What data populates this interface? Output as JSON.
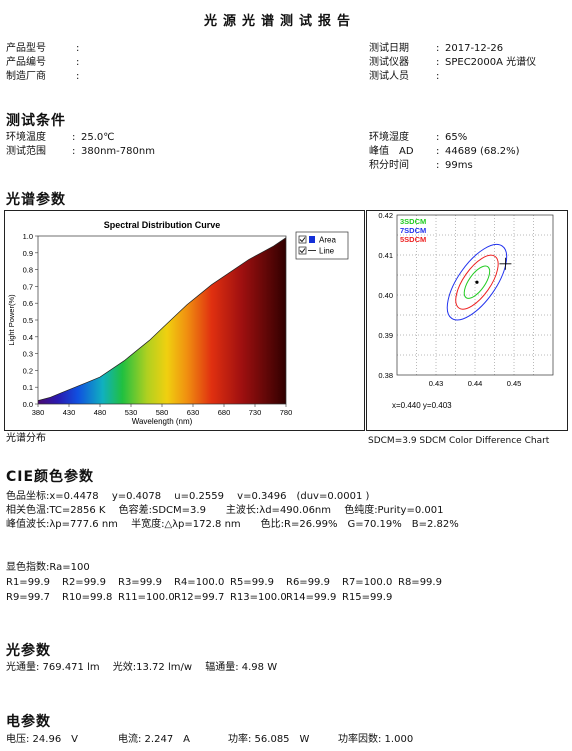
{
  "report": {
    "title": "光源光谱测试报告"
  },
  "info": {
    "left": [
      {
        "label": "产品型号",
        "value": ""
      },
      {
        "label": "产品编号",
        "value": ""
      },
      {
        "label": "制造厂商",
        "value": ""
      }
    ],
    "right": [
      {
        "label": "测试日期",
        "value": "2017-12-26"
      },
      {
        "label": "测试仪器",
        "value": "SPEC2000A 光谱仪"
      },
      {
        "label": "测试人员",
        "value": ""
      }
    ]
  },
  "conditions": {
    "heading": "测试条件",
    "left": [
      {
        "label": "环境温度",
        "value": "25.0℃"
      },
      {
        "label": "测试范围",
        "value": "380nm-780nm"
      }
    ],
    "right": [
      {
        "label": "环境湿度",
        "value": "65%"
      },
      {
        "label": "峰值　AD",
        "value": "44689 (68.2%)"
      },
      {
        "label": "积分时间",
        "value": "99ms"
      }
    ]
  },
  "spectrum": {
    "heading": "光谱参数",
    "caption_left": "光谱分布",
    "caption_right": "SDCM=3.9  SDCM Color Difference Chart",
    "legend": [
      {
        "label": "Area",
        "checked": true,
        "color": "#1430d8"
      },
      {
        "label": "Line",
        "checked": true,
        "color": "#333333"
      }
    ]
  },
  "chart_data": [
    {
      "type": "area",
      "title": "Spectral Distribution Curve",
      "xlabel": "Wavelength  (nm)",
      "ylabel": "Light Power(%)",
      "xlim": [
        380,
        780
      ],
      "ylim": [
        0,
        1.0
      ],
      "x_ticks": [
        "380",
        "430",
        "480",
        "530",
        "580",
        "630",
        "680",
        "730",
        "780"
      ],
      "y_ticks": [
        "0.0",
        "0.1",
        "0.2",
        "0.3",
        "0.4",
        "0.5",
        "0.6",
        "0.7",
        "0.8",
        "0.9",
        "1.0"
      ],
      "grid": false,
      "legend_position": "right",
      "x": [
        380,
        400,
        420,
        440,
        460,
        480,
        500,
        520,
        540,
        560,
        580,
        600,
        620,
        640,
        660,
        680,
        700,
        720,
        740,
        760,
        780
      ],
      "y": [
        0.02,
        0.04,
        0.07,
        0.1,
        0.13,
        0.16,
        0.21,
        0.26,
        0.32,
        0.38,
        0.45,
        0.52,
        0.59,
        0.65,
        0.71,
        0.76,
        0.81,
        0.86,
        0.9,
        0.94,
        0.99
      ]
    },
    {
      "type": "scatter",
      "title": "",
      "xlim": [
        0.42,
        0.46
      ],
      "ylim": [
        0.38,
        0.42
      ],
      "x_ticks": [
        "0.43",
        "0.44",
        "0.45"
      ],
      "y_ticks": [
        "0.42",
        "0.41",
        "0.40",
        "0.39",
        "0.38"
      ],
      "grid": true,
      "legend_position": "top-left",
      "series": [
        {
          "name": "3SDCM",
          "color": "#22cc22"
        },
        {
          "name": "7SDCM",
          "color": "#2233ee"
        },
        {
          "name": "5SDCM",
          "color": "#ee2222"
        }
      ],
      "ellipse_center": {
        "x": 0.4405,
        "y": 0.4032
      },
      "measured_point": {
        "x": 0.4478,
        "y": 0.4078
      },
      "target_point": {
        "x": 0.4405,
        "y": 0.4032
      },
      "readout": "x=0.440  y=0.403"
    }
  ],
  "cie": {
    "heading": "CIE颜色参数",
    "lines": [
      "色品坐标:x=0.4478　 y=0.4078　 u=0.2559　 v=0.3496　(duv=0.0001 )",
      "相关色温:TC=2856 K　 色容差:SDCM=3.9　　主波长:λd=490.06nm　 色纯度:Purity=0.001",
      "峰值波长:λp=777.6 nm　 半宽度:△λp=172.8 nm　　色比:R=26.99%　G=70.19%　B=2.82%"
    ]
  },
  "cri": {
    "ra": "显色指数:Ra=100",
    "row1": [
      "R1=99.9",
      "R2=99.9",
      "R3=99.9",
      "R4=100.0",
      "R5=99.9",
      "R6=99.9",
      "R7=100.0",
      "R8=99.9"
    ],
    "row2": [
      "R9=99.7",
      "R10=99.8",
      "R11=100.0",
      "R12=99.7",
      "R13=100.0",
      "R14=99.9",
      "R15=99.9"
    ]
  },
  "optical": {
    "heading": "光参数",
    "line": "光通量: 769.471 lm　 光效:13.72 lm/w　 辐通量: 4.98 W"
  },
  "electrical": {
    "heading": "电参数",
    "items": [
      "电压: 24.96　V",
      "电流: 2.247　A",
      "功率: 56.085　W",
      "功率因数: 1.000"
    ]
  }
}
